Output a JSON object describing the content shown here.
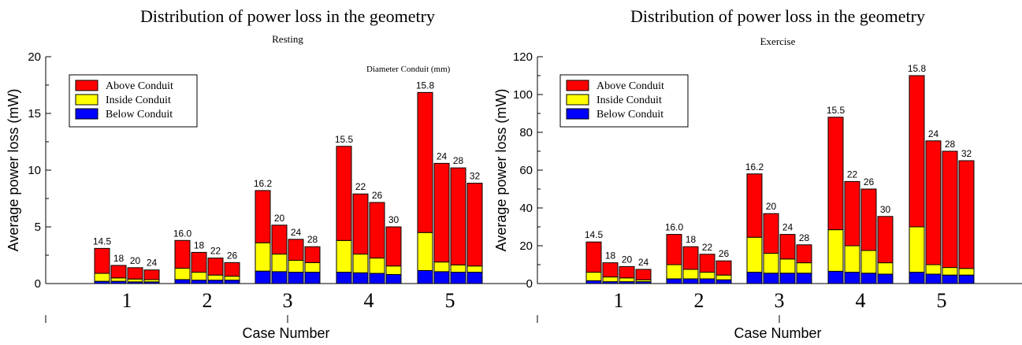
{
  "chart_data": [
    {
      "type": "bar",
      "stacked": true,
      "title": "Distribution of power loss in the geometry",
      "subtitle": "Resting",
      "xlabel": "Case Number",
      "ylabel": "Average power loss (mW)",
      "ylim": [
        0,
        20
      ],
      "yticks": [
        0,
        5,
        10,
        15,
        20
      ],
      "annotation": "Diameter Conduit (mm)",
      "grid": false,
      "legend_position": "top-left",
      "categories": [
        "1",
        "2",
        "3",
        "4",
        "5"
      ],
      "series": [
        {
          "name": "Below Conduit",
          "color": "#0000ff"
        },
        {
          "name": "Inside Conduit",
          "color": "#ffff00"
        },
        {
          "name": "Above Conduit",
          "color": "#ff0000"
        }
      ],
      "groups": [
        {
          "case": "1",
          "bars": [
            {
              "label": "14.5",
              "values": [
                0.2,
                0.7,
                2.2
              ]
            },
            {
              "label": "18",
              "values": [
                0.2,
                0.3,
                1.1
              ]
            },
            {
              "label": "20",
              "values": [
                0.15,
                0.25,
                1.0
              ]
            },
            {
              "label": "24",
              "values": [
                0.15,
                0.2,
                0.85
              ]
            }
          ]
        },
        {
          "case": "2",
          "bars": [
            {
              "label": "16.0",
              "values": [
                0.35,
                1.0,
                2.45
              ]
            },
            {
              "label": "18",
              "values": [
                0.3,
                0.7,
                1.75
              ]
            },
            {
              "label": "22",
              "values": [
                0.3,
                0.45,
                1.5
              ]
            },
            {
              "label": "26",
              "values": [
                0.3,
                0.35,
                1.2
              ]
            }
          ]
        },
        {
          "case": "3",
          "bars": [
            {
              "label": "16.2",
              "values": [
                1.1,
                2.5,
                4.6
              ]
            },
            {
              "label": "20",
              "values": [
                1.05,
                1.55,
                2.55
              ]
            },
            {
              "label": "24",
              "values": [
                1.0,
                1.05,
                1.85
              ]
            },
            {
              "label": "28",
              "values": [
                1.0,
                0.85,
                1.4
              ]
            }
          ]
        },
        {
          "case": "4",
          "bars": [
            {
              "label": "15.5",
              "values": [
                1.0,
                2.8,
                8.3
              ]
            },
            {
              "label": "22",
              "values": [
                0.95,
                1.65,
                5.3
              ]
            },
            {
              "label": "26",
              "values": [
                0.9,
                1.35,
                4.9
              ]
            },
            {
              "label": "30",
              "values": [
                0.8,
                0.75,
                3.45
              ]
            }
          ]
        },
        {
          "case": "5",
          "bars": [
            {
              "label": "15.8",
              "values": [
                1.15,
                3.35,
                12.35
              ]
            },
            {
              "label": "24",
              "values": [
                1.05,
                0.85,
                8.7
              ]
            },
            {
              "label": "28",
              "values": [
                1.0,
                0.65,
                8.55
              ]
            },
            {
              "label": "32",
              "values": [
                1.0,
                0.55,
                7.3
              ]
            }
          ]
        }
      ]
    },
    {
      "type": "bar",
      "stacked": true,
      "title": "Distribution of power loss in the geometry",
      "subtitle": "Exercise",
      "xlabel": "Case Number",
      "ylabel": "Average power loss (mW)",
      "ylim": [
        0,
        120
      ],
      "yticks": [
        0,
        20,
        40,
        60,
        80,
        100,
        120
      ],
      "annotation": "",
      "grid": false,
      "legend_position": "top-left",
      "categories": [
        "1",
        "2",
        "3",
        "4",
        "5"
      ],
      "series": [
        {
          "name": "Below Conduit",
          "color": "#0000ff"
        },
        {
          "name": "Inside Conduit",
          "color": "#ffff00"
        },
        {
          "name": "Above Conduit",
          "color": "#ff0000"
        }
      ],
      "groups": [
        {
          "case": "1",
          "bars": [
            {
              "label": "14.5",
              "values": [
                1.5,
                4.5,
                16.0
              ]
            },
            {
              "label": "18",
              "values": [
                1.0,
                2.5,
                7.5
              ]
            },
            {
              "label": "20",
              "values": [
                1.0,
                2.0,
                6.0
              ]
            },
            {
              "label": "24",
              "values": [
                1.0,
                1.0,
                5.5
              ]
            }
          ]
        },
        {
          "case": "2",
          "bars": [
            {
              "label": "16.0",
              "values": [
                2.5,
                7.5,
                16.0
              ]
            },
            {
              "label": "18",
              "values": [
                2.5,
                5.0,
                12.0
              ]
            },
            {
              "label": "22",
              "values": [
                2.5,
                3.5,
                9.5
              ]
            },
            {
              "label": "26",
              "values": [
                2.0,
                2.5,
                7.5
              ]
            }
          ]
        },
        {
          "case": "3",
          "bars": [
            {
              "label": "16.2",
              "values": [
                6.0,
                18.5,
                33.5
              ]
            },
            {
              "label": "20",
              "values": [
                5.5,
                10.5,
                21.0
              ]
            },
            {
              "label": "24",
              "values": [
                5.5,
                7.5,
                13.0
              ]
            },
            {
              "label": "28",
              "values": [
                5.5,
                5.5,
                9.5
              ]
            }
          ]
        },
        {
          "case": "4",
          "bars": [
            {
              "label": "15.5",
              "values": [
                6.5,
                22.0,
                59.5
              ]
            },
            {
              "label": "22",
              "values": [
                6.0,
                14.0,
                34.0
              ]
            },
            {
              "label": "26",
              "values": [
                5.5,
                12.0,
                32.5
              ]
            },
            {
              "label": "30",
              "values": [
                5.0,
                6.0,
                24.5
              ]
            }
          ]
        },
        {
          "case": "5",
          "bars": [
            {
              "label": "15.8",
              "values": [
                6.0,
                24.0,
                80.0
              ]
            },
            {
              "label": "24",
              "values": [
                5.0,
                5.0,
                65.5
              ]
            },
            {
              "label": "28",
              "values": [
                4.5,
                4.0,
                61.5
              ]
            },
            {
              "label": "32",
              "values": [
                4.5,
                3.5,
                57.0
              ]
            }
          ]
        }
      ]
    }
  ]
}
